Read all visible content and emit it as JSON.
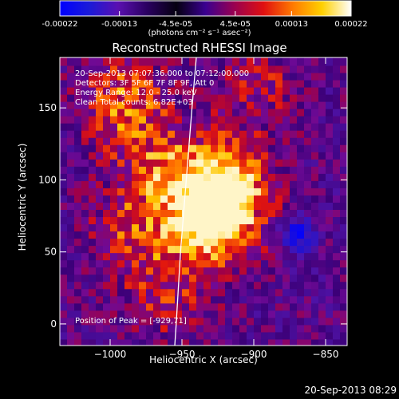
{
  "colorbar": {
    "ticks": [
      "-0.00022",
      "-0.00013",
      "-4.5e-05",
      "4.5e-05",
      "0.00013",
      "0.00022"
    ],
    "unit": "(photons cm⁻² s⁻¹ asec⁻²)",
    "range": [
      -0.00022,
      0.00022
    ],
    "colors": [
      "#0000ff",
      "#1a1ad8",
      "#5a10b0",
      "#2a0060",
      "#050010",
      "#3a0090",
      "#9a0050",
      "#e01010",
      "#ff7a00",
      "#ffd000",
      "#ffffff"
    ]
  },
  "title": "Reconstructed RHESSI Image",
  "annotations": {
    "time": "20-Sep-2013 07:07:36.000 to 07:12:00.000",
    "detectors": "Detectors: 3F 5F 6F 7F 8F 9F, Att 0",
    "energy": "Energy Range: 12.0 - 25.0 keV",
    "clean": "Clean     Total counts: 6.82E+03",
    "peak": "Position of Peak = [-929,71]"
  },
  "footer": {
    "timestamp": "20-Sep-2013 08:29"
  },
  "chart_data": {
    "type": "heatmap",
    "title": "Reconstructed RHESSI Image",
    "xlabel": "Heliocentric X (arcsec)",
    "ylabel": "Heliocentric Y (arcsec)",
    "xlim": [
      -1035,
      -835
    ],
    "ylim": [
      -15,
      185
    ],
    "xticks": [
      -1000,
      -950,
      -900,
      -850
    ],
    "xtick_labels": [
      "−1000",
      "−950",
      "−900",
      "−850"
    ],
    "yticks": [
      0,
      50,
      100,
      150
    ],
    "ytick_labels": [
      "0",
      "50",
      "100",
      "150"
    ],
    "peak": [
      -929,
      71
    ],
    "limb_curve": [
      [
        -940,
        185
      ],
      [
        -943,
        150
      ],
      [
        -947,
        100
      ],
      [
        -951,
        50
      ],
      [
        -954,
        0
      ],
      [
        -955,
        -15
      ]
    ],
    "sources": [
      {
        "x": -930,
        "y": 72,
        "strength": 1.0
      },
      {
        "x": -920,
        "y": 100,
        "strength": 0.7
      },
      {
        "x": -990,
        "y": 155,
        "strength": 0.55
      },
      {
        "x": -965,
        "y": 110,
        "strength": 0.45
      },
      {
        "x": -985,
        "y": 65,
        "strength": 0.4
      },
      {
        "x": -960,
        "y": 20,
        "strength": 0.35
      },
      {
        "x": -895,
        "y": 165,
        "strength": 0.3
      }
    ],
    "negative_sources": [
      {
        "x": -870,
        "y": 62,
        "strength": 0.9
      }
    ]
  }
}
